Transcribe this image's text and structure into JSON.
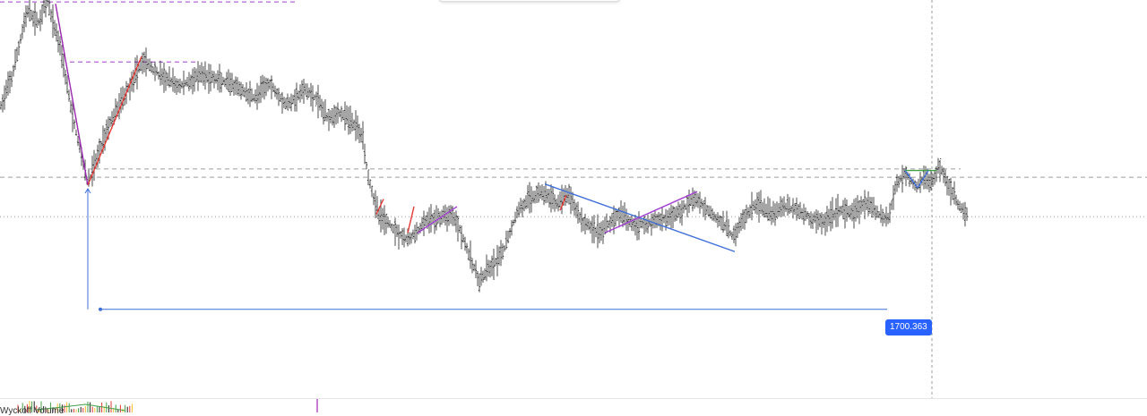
{
  "colors": {
    "candle": "#1f1f1f",
    "fall_line": "#9c27b0",
    "rise_line": "#e53935",
    "blue_line": "#3f6fd8",
    "purple_line": "#a23fd2",
    "green_line": "#43a047",
    "dashed_purple": "#a23fd2",
    "dashed_gray": "#9e9e9e",
    "crosshair": "#9e9e9e",
    "badge": "#2962ff"
  },
  "price_label": "1700.363",
  "indicator_label": "Wyckoff Volume",
  "chart_data": {
    "type": "candlestick",
    "title": "",
    "xlabel": "",
    "ylabel": "",
    "grid": false,
    "legend": "none",
    "price_range": [
      1698.0,
      1708.6
    ],
    "price_line": 1700.363,
    "price_path": [
      [
        0,
        1705.7
      ],
      [
        14,
        1706.6
      ],
      [
        30,
        1708.3
      ],
      [
        43,
        1708.0
      ],
      [
        52,
        1708.6
      ],
      [
        68,
        1707.3
      ],
      [
        80,
        1705.6
      ],
      [
        98,
        1703.7
      ],
      [
        120,
        1705.2
      ],
      [
        142,
        1706.2
      ],
      [
        160,
        1707.0
      ],
      [
        178,
        1706.6
      ],
      [
        200,
        1706.3
      ],
      [
        225,
        1706.6
      ],
      [
        240,
        1706.5
      ],
      [
        260,
        1706.3
      ],
      [
        285,
        1706.0
      ],
      [
        300,
        1706.4
      ],
      [
        320,
        1705.8
      ],
      [
        340,
        1706.2
      ],
      [
        352,
        1706.0
      ],
      [
        365,
        1705.5
      ],
      [
        380,
        1705.6
      ],
      [
        395,
        1705.3
      ],
      [
        405,
        1705.0
      ],
      [
        410,
        1704.0
      ],
      [
        422,
        1702.9
      ],
      [
        440,
        1702.5
      ],
      [
        455,
        1702.2
      ],
      [
        465,
        1702.4
      ],
      [
        475,
        1702.7
      ],
      [
        490,
        1702.8
      ],
      [
        505,
        1702.9
      ],
      [
        515,
        1702.4
      ],
      [
        525,
        1701.7
      ],
      [
        535,
        1701.1
      ],
      [
        545,
        1701.4
      ],
      [
        560,
        1701.8
      ],
      [
        578,
        1703.0
      ],
      [
        590,
        1703.3
      ],
      [
        605,
        1703.5
      ],
      [
        620,
        1703.2
      ],
      [
        635,
        1703.4
      ],
      [
        650,
        1702.7
      ],
      [
        670,
        1702.4
      ],
      [
        690,
        1702.9
      ],
      [
        710,
        1702.6
      ],
      [
        730,
        1702.7
      ],
      [
        745,
        1702.8
      ],
      [
        760,
        1703.0
      ],
      [
        775,
        1703.3
      ],
      [
        790,
        1703.0
      ],
      [
        805,
        1702.7
      ],
      [
        818,
        1702.3
      ],
      [
        830,
        1702.8
      ],
      [
        845,
        1703.2
      ],
      [
        860,
        1702.9
      ],
      [
        875,
        1703.1
      ],
      [
        890,
        1703.0
      ],
      [
        905,
        1702.8
      ],
      [
        920,
        1702.7
      ],
      [
        935,
        1703.0
      ],
      [
        950,
        1702.9
      ],
      [
        965,
        1703.2
      ],
      [
        980,
        1702.9
      ],
      [
        992,
        1702.8
      ],
      [
        1000,
        1703.7
      ],
      [
        1010,
        1704.0
      ],
      [
        1022,
        1703.6
      ],
      [
        1032,
        1703.9
      ],
      [
        1040,
        1703.7
      ],
      [
        1048,
        1704.2
      ],
      [
        1058,
        1703.7
      ],
      [
        1068,
        1703.2
      ],
      [
        1080,
        1702.8
      ]
    ],
    "bar_count": 540,
    "time_range": [
      0,
      1080
    ]
  },
  "drawings": {
    "dashed_levels": [
      {
        "name": "level-top",
        "price": 1708.55,
        "t_start": 0,
        "t_end": 330,
        "color": "dashed_purple"
      },
      {
        "name": "level-mid",
        "price": 1706.95,
        "t_start": 78,
        "t_end": 222,
        "color": "dashed_purple"
      },
      {
        "name": "level-resistance",
        "price": 1704.1,
        "t_start": 98,
        "t_end": 1072,
        "color": "dashed_gray"
      },
      {
        "name": "level-full",
        "price": 1703.88,
        "t_start": 0,
        "t_end": 1280,
        "color": "dashed_gray"
      },
      {
        "name": "level-dotted",
        "price": 1702.83,
        "t_start": 0,
        "t_end": 1280,
        "color": "dashed_gray"
      }
    ],
    "trend_lines": [
      {
        "name": "fall-leg",
        "from": [
          62,
          1708.5
        ],
        "to": [
          98,
          1703.67
        ],
        "color": "fall_line"
      },
      {
        "name": "rise-leg",
        "from": [
          98,
          1703.67
        ],
        "to": [
          158,
          1707.1
        ],
        "color": "rise_line"
      },
      {
        "name": "red-tick-1",
        "from": [
          420,
          1702.9
        ],
        "to": [
          428,
          1703.3
        ],
        "color": "rise_line"
      },
      {
        "name": "red-tick-2",
        "from": [
          455,
          1702.4
        ],
        "to": [
          462,
          1703.1
        ],
        "color": "rise_line"
      },
      {
        "name": "rise-small",
        "from": [
          466,
          1702.4
        ],
        "to": [
          510,
          1703.1
        ],
        "color": "purple_line"
      },
      {
        "name": "red-tick-3",
        "from": [
          625,
          1703.0
        ],
        "to": [
          632,
          1703.4
        ],
        "color": "rise_line"
      },
      {
        "name": "blue-down",
        "from": [
          608,
          1703.7
        ],
        "to": [
          820,
          1701.9
        ],
        "color": "blue_line"
      },
      {
        "name": "purple-up",
        "from": [
          675,
          1702.4
        ],
        "to": [
          778,
          1703.5
        ],
        "color": "purple_line"
      },
      {
        "name": "top-flag",
        "from": [
          1010,
          1704.06
        ],
        "to": [
          1045,
          1704.06
        ],
        "color": "green_line"
      },
      {
        "name": "flag-leg-1",
        "from": [
          1010,
          1704.06
        ],
        "to": [
          1024,
          1703.6
        ],
        "color": "blue_line"
      },
      {
        "name": "flag-leg-2",
        "from": [
          1024,
          1703.6
        ],
        "to": [
          1036,
          1704.06
        ],
        "color": "blue_line"
      }
    ],
    "measure_anchor": {
      "t": 98,
      "price_top": 1703.67,
      "price_bottom": 1700.363
    },
    "crosshair_time": 1040
  }
}
